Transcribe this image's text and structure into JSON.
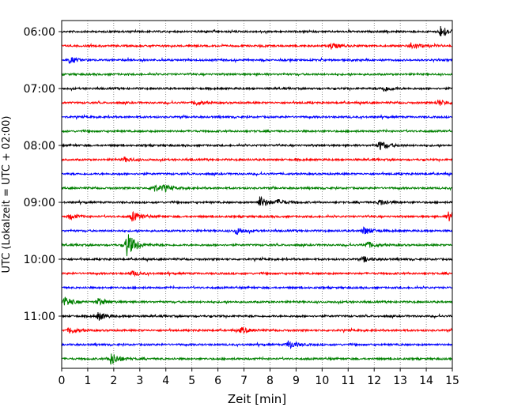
{
  "chart_data": {
    "type": "line",
    "title": "",
    "xlabel": "Zeit  [min]",
    "ylabel": "UTC (Lokalzeit = UTC + 02:00)",
    "xlim": [
      0,
      15
    ],
    "x_ticks": [
      0,
      1,
      2,
      3,
      4,
      5,
      6,
      7,
      8,
      9,
      10,
      11,
      12,
      13,
      14,
      15
    ],
    "grid": "vertical dotted",
    "legend": "none",
    "y_tick_labels": [
      "06:00",
      "07:00",
      "08:00",
      "09:00",
      "10:00",
      "11:00"
    ],
    "trace_interval_min": 15,
    "trace_colors": [
      "#000000",
      "#ff0000",
      "#0000ff",
      "#008000"
    ],
    "series": [
      {
        "start": "06:00",
        "events": [
          [
            14.55,
            1.0
          ]
        ]
      },
      {
        "start": "06:15",
        "events": [
          [
            13.4,
            0.6
          ],
          [
            10.35,
            0.5
          ]
        ]
      },
      {
        "start": "06:30",
        "events": [
          [
            0.3,
            0.5
          ]
        ]
      },
      {
        "start": "06:45",
        "events": []
      },
      {
        "start": "07:00",
        "events": [
          [
            12.35,
            0.5
          ]
        ]
      },
      {
        "start": "07:15",
        "events": [
          [
            14.45,
            0.5
          ],
          [
            5.1,
            0.4
          ]
        ]
      },
      {
        "start": "07:30",
        "events": []
      },
      {
        "start": "07:45",
        "events": []
      },
      {
        "start": "08:00",
        "events": [
          [
            12.2,
            0.8
          ]
        ]
      },
      {
        "start": "08:15",
        "events": [
          [
            2.4,
            0.4
          ]
        ]
      },
      {
        "start": "08:30",
        "events": []
      },
      {
        "start": "08:45",
        "events": [
          [
            3.5,
            0.7
          ],
          [
            3.9,
            0.4
          ]
        ]
      },
      {
        "start": "09:00",
        "events": [
          [
            7.6,
            1.0
          ],
          [
            12.2,
            0.5
          ],
          [
            8.3,
            0.4
          ]
        ]
      },
      {
        "start": "09:15",
        "events": [
          [
            2.7,
            0.8
          ],
          [
            14.85,
            0.8
          ],
          [
            0.3,
            0.4
          ]
        ]
      },
      {
        "start": "09:30",
        "events": [
          [
            6.7,
            0.6
          ],
          [
            11.6,
            0.7
          ]
        ]
      },
      {
        "start": "09:45",
        "events": [
          [
            2.5,
            2.2
          ],
          [
            11.7,
            0.6
          ]
        ]
      },
      {
        "start": "10:00",
        "events": [
          [
            11.6,
            0.4
          ]
        ]
      },
      {
        "start": "10:15",
        "events": [
          [
            2.7,
            0.4
          ]
        ]
      },
      {
        "start": "10:30",
        "events": []
      },
      {
        "start": "10:45",
        "events": [
          [
            0.1,
            0.8
          ],
          [
            1.4,
            0.6
          ]
        ]
      },
      {
        "start": "11:00",
        "events": [
          [
            1.4,
            0.7
          ]
        ]
      },
      {
        "start": "11:15",
        "events": [
          [
            0.3,
            0.5
          ],
          [
            6.9,
            0.5
          ]
        ]
      },
      {
        "start": "11:30",
        "events": [
          [
            8.7,
            0.7
          ]
        ]
      },
      {
        "start": "11:45",
        "events": [
          [
            1.9,
            1.1
          ]
        ]
      }
    ]
  }
}
